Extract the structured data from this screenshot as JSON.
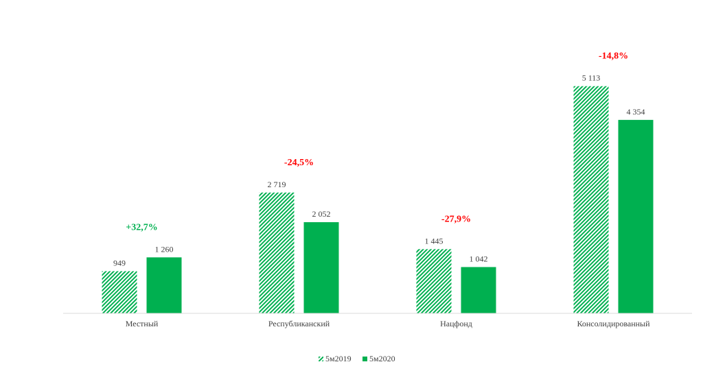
{
  "chart_data": {
    "type": "bar",
    "categories": [
      "Местный",
      "Республиканский",
      "Нацфонд",
      "Консолидированный"
    ],
    "series": [
      {
        "name": "5м2019",
        "values": [
          949,
          2719,
          1445,
          5113
        ],
        "value_labels": [
          "949",
          "2 719",
          "1 445",
          "5 113"
        ],
        "style": "hatched"
      },
      {
        "name": "5м2020",
        "values": [
          1260,
          2052,
          1042,
          4354
        ],
        "value_labels": [
          "1 260",
          "2 052",
          "1 042",
          "4 354"
        ],
        "style": "solid"
      }
    ],
    "changes": [
      "+32,7%",
      "-24,5%",
      "-27,9%",
      "-14,8%"
    ],
    "ylim": [
      0,
      5600
    ],
    "grid": false,
    "legend": "bottom-center"
  },
  "colors": {
    "series": "#00b050",
    "positive_change": "#00b050",
    "negative_change": "#ff0000",
    "axis": "#d9d9d9",
    "text": "#404040"
  }
}
